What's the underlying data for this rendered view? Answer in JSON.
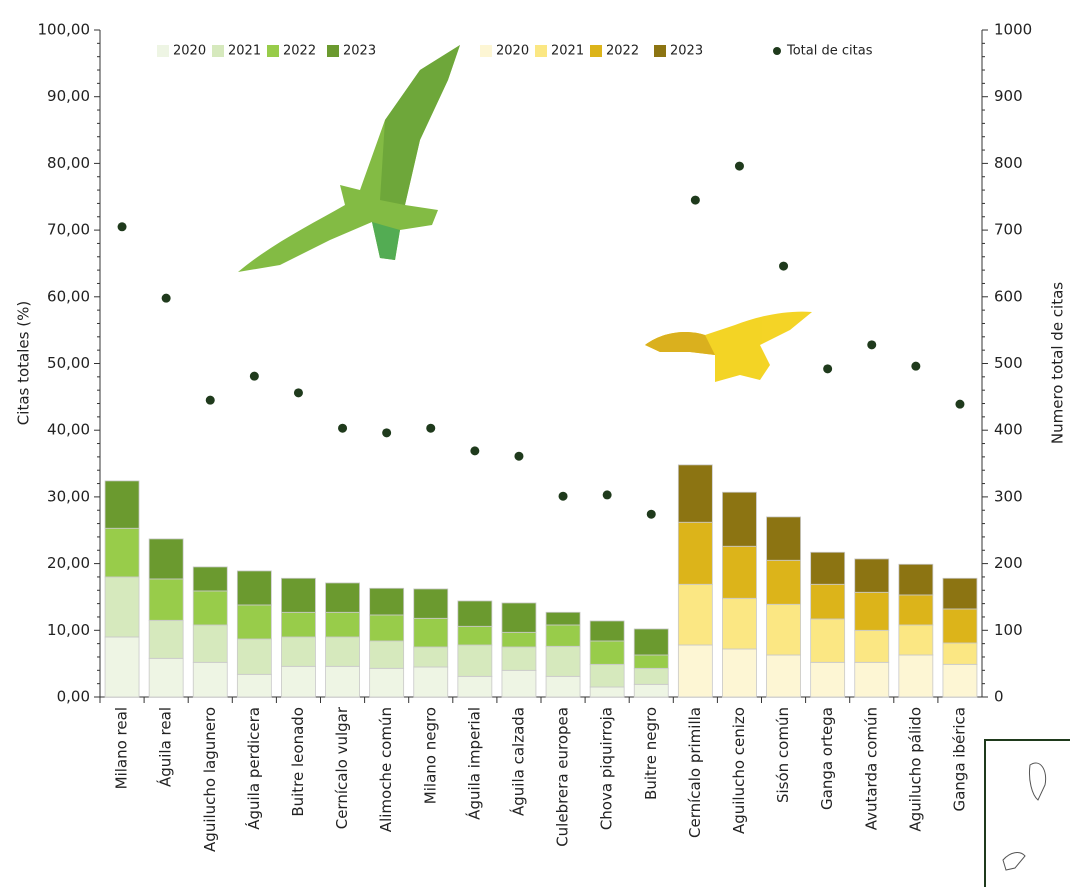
{
  "chart_data": {
    "type": "bar",
    "stacked": true,
    "y_label": "Citas totales (%)",
    "y2_label": "Numero total de citas",
    "categories": [
      "Milano real",
      "Águila real",
      "Aguilucho lagunero",
      "Águila perdicera",
      "Buitre leonado",
      "Cernícalo vulgar",
      "Alimoche común",
      "Milano negro",
      "Águila imperial",
      "Águila calzada",
      "Culebrera europea",
      "Chova piquirroja",
      "Buitre negro",
      "Cernícalo primilla",
      "Aguilucho cenizo",
      "Sisón común",
      "Ganga ortega",
      "Avutarda común",
      "Aguilucho pálido",
      "Ganga ibérica"
    ],
    "ylim": [
      0,
      100
    ],
    "yticks": [
      {
        "value": 0,
        "label": "0,00"
      },
      {
        "value": 10,
        "label": "10,00"
      },
      {
        "value": 20,
        "label": "20,00"
      },
      {
        "value": 30,
        "label": "30,00"
      },
      {
        "value": 40,
        "label": "40,00"
      },
      {
        "value": 50,
        "label": "50,00"
      },
      {
        "value": 60,
        "label": "60,00"
      },
      {
        "value": 70,
        "label": "70,00"
      },
      {
        "value": 80,
        "label": "80,00"
      },
      {
        "value": 90,
        "label": "90,00"
      },
      {
        "value": 100,
        "label": "100,00"
      }
    ],
    "y2lim": [
      0,
      1000
    ],
    "y2ticks": [
      0,
      100,
      200,
      300,
      400,
      500,
      600,
      700,
      800,
      900,
      1000
    ],
    "series": [
      {
        "name": "2020",
        "color": "#eef5e4",
        "values": [
          9.0,
          5.8,
          5.2,
          3.4,
          4.6,
          4.6,
          4.3,
          4.5,
          3.1,
          4.0,
          3.1,
          1.5,
          1.9,
          null,
          null,
          null,
          null,
          null,
          null,
          null
        ]
      },
      {
        "name": "2021",
        "color": "#d6e9bd",
        "values": [
          9.0,
          5.7,
          5.6,
          5.3,
          4.4,
          4.4,
          4.1,
          3.0,
          4.7,
          3.5,
          4.5,
          3.4,
          2.4,
          null,
          null,
          null,
          null,
          null,
          null,
          null
        ]
      },
      {
        "name": "2022",
        "color": "#98cc4a",
        "values": [
          7.3,
          6.2,
          5.1,
          5.1,
          3.7,
          3.7,
          3.9,
          4.3,
          2.8,
          2.2,
          3.2,
          3.5,
          2.0,
          null,
          null,
          null,
          null,
          null,
          null,
          null
        ]
      },
      {
        "name": "2023",
        "color": "#6b9a2f",
        "values": [
          7.1,
          6.0,
          3.6,
          5.1,
          5.1,
          4.4,
          4.0,
          4.4,
          3.8,
          4.4,
          1.9,
          3.0,
          3.9,
          null,
          null,
          null,
          null,
          null,
          null,
          null
        ]
      },
      {
        "name": "2020",
        "color": "#fdf6d4",
        "values": [
          null,
          null,
          null,
          null,
          null,
          null,
          null,
          null,
          null,
          null,
          null,
          null,
          null,
          7.8,
          7.2,
          6.3,
          5.2,
          5.2,
          6.3,
          4.9
        ]
      },
      {
        "name": "2021",
        "color": "#fbe783",
        "values": [
          null,
          null,
          null,
          null,
          null,
          null,
          null,
          null,
          null,
          null,
          null,
          null,
          null,
          9.1,
          7.6,
          7.6,
          6.5,
          4.8,
          4.5,
          3.2
        ]
      },
      {
        "name": "2022",
        "color": "#dcb41a",
        "values": [
          null,
          null,
          null,
          null,
          null,
          null,
          null,
          null,
          null,
          null,
          null,
          null,
          null,
          9.3,
          7.8,
          6.6,
          5.2,
          5.7,
          4.5,
          5.1
        ]
      },
      {
        "name": "2023",
        "color": "#8c7412",
        "values": [
          null,
          null,
          null,
          null,
          null,
          null,
          null,
          null,
          null,
          null,
          null,
          null,
          null,
          8.6,
          8.1,
          6.5,
          4.8,
          5.0,
          4.6,
          4.6
        ]
      },
      {
        "name": "Total de citas",
        "color": "#1f3a1c",
        "type": "scatter",
        "axis": "y2",
        "values": [
          705,
          598,
          445,
          481,
          456,
          403,
          396,
          403,
          369,
          361,
          301,
          303,
          274,
          745,
          796,
          646,
          492,
          528,
          496,
          439
        ]
      }
    ]
  }
}
